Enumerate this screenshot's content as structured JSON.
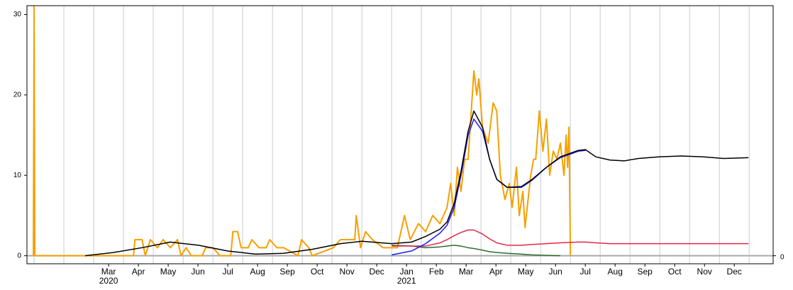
{
  "chart_data": {
    "type": "line",
    "xlim": [
      2019.98,
      2022.067
    ],
    "ylim": [
      -1,
      31.1
    ],
    "y2lim": [
      -1,
      31.1
    ],
    "yticks": [
      0,
      10,
      20,
      30
    ],
    "y2ticks": [
      0
    ],
    "xgrid": [
      2020,
      2020.0833,
      2020.1667,
      2020.25,
      2020.3333,
      2020.4167,
      2020.5,
      2020.5833,
      2020.6667,
      2020.75,
      2020.8333,
      2020.9167,
      2021,
      2021.0833,
      2021.1667,
      2021.25,
      2021.3333,
      2021.4167,
      2021.5,
      2021.5833,
      2021.6667,
      2021.75,
      2021.8333,
      2021.9167,
      2022
    ],
    "xticks": [
      {
        "value": 2020.2083,
        "label": "Mar 2020"
      },
      {
        "value": 2020.2917,
        "label": "Apr"
      },
      {
        "value": 2020.375,
        "label": "May"
      },
      {
        "value": 2020.4583,
        "label": "Jun"
      },
      {
        "value": 2020.5417,
        "label": "Jul"
      },
      {
        "value": 2020.625,
        "label": "Aug"
      },
      {
        "value": 2020.7083,
        "label": "Sep"
      },
      {
        "value": 2020.7917,
        "label": "Oct"
      },
      {
        "value": 2020.875,
        "label": "Nov"
      },
      {
        "value": 2020.9583,
        "label": "Dec"
      },
      {
        "value": 2021.0417,
        "label": "Jan 2021"
      },
      {
        "value": 2021.125,
        "label": "Feb"
      },
      {
        "value": 2021.2083,
        "label": "Mar"
      },
      {
        "value": 2021.2917,
        "label": "Apr"
      },
      {
        "value": 2021.375,
        "label": "May"
      },
      {
        "value": 2021.4583,
        "label": "Jun"
      },
      {
        "value": 2021.5417,
        "label": "Jul"
      },
      {
        "value": 2021.625,
        "label": "Aug"
      },
      {
        "value": 2021.7083,
        "label": "Sep"
      },
      {
        "value": 2021.7917,
        "label": "Oct"
      },
      {
        "value": 2021.875,
        "label": "Nov"
      },
      {
        "value": 2021.9583,
        "label": "Dec"
      }
    ],
    "x": [
      2020.143,
      2020.222,
      2020.302,
      2020.381,
      2020.46,
      2020.54,
      2020.619,
      2020.698,
      2020.778,
      2020.857,
      2020.917,
      2021.0,
      2021.056,
      2021.095,
      2021.135,
      2021.155,
      2021.175,
      2021.194,
      2021.214,
      2021.23,
      2021.254,
      2021.274,
      2021.294,
      2021.323,
      2021.363,
      2021.393,
      2021.433,
      2021.472,
      2021.522,
      2021.542,
      2021.571,
      2021.611,
      2021.651,
      2021.69,
      2021.75,
      2021.81,
      2021.869,
      2021.929,
      2021.998
    ],
    "series": [
      {
        "color": "#f5a000",
        "x": [
          2019.998,
          2020.0,
          2020.002,
          2020.278,
          2020.282,
          2020.302,
          2020.311,
          2020.325,
          2020.345,
          2020.361,
          2020.381,
          2020.401,
          2020.411,
          2020.425,
          2020.44,
          2020.47,
          2020.48,
          2020.5,
          2020.52,
          2020.55,
          2020.556,
          2020.569,
          2020.579,
          2020.599,
          2020.609,
          2020.629,
          2020.649,
          2020.659,
          2020.679,
          2020.698,
          2020.738,
          2020.748,
          2020.768,
          2020.778,
          2020.837,
          2020.857,
          2020.897,
          2020.901,
          2020.913,
          2020.927,
          2020.946,
          2020.976,
          2021.016,
          2021.036,
          2021.052,
          2021.075,
          2021.095,
          2021.115,
          2021.135,
          2021.155,
          2021.165,
          2021.175,
          2021.184,
          2021.194,
          2021.204,
          2021.214,
          2021.23,
          2021.238,
          2021.244,
          2021.254,
          2021.27,
          2021.284,
          2021.294,
          2021.304,
          2021.317,
          2021.329,
          2021.337,
          2021.349,
          2021.357,
          2021.367,
          2021.373,
          2021.389,
          2021.397,
          2021.403,
          2021.413,
          2021.423,
          2021.433,
          2021.442,
          2021.452,
          2021.462,
          2021.472,
          2021.482,
          2021.488,
          2021.492,
          2021.496,
          2021.5
        ],
        "values": [
          0,
          31,
          0,
          0,
          2,
          2,
          0,
          2,
          1,
          2,
          1,
          2,
          0,
          1,
          0,
          0,
          1,
          1,
          0,
          0,
          3,
          3,
          1,
          1,
          2,
          1,
          1,
          2,
          1,
          1,
          0,
          2,
          1,
          0,
          1,
          2,
          2,
          5,
          1,
          3,
          2,
          1,
          1,
          5,
          2,
          4,
          3,
          5,
          4,
          6,
          9,
          5,
          11,
          8,
          12,
          12,
          23,
          20,
          22,
          16,
          14,
          19,
          18,
          10,
          7,
          9,
          6,
          11,
          5,
          8,
          3.5,
          10,
          12,
          12,
          18,
          13,
          17,
          10,
          13,
          12,
          14,
          10,
          15,
          11,
          16,
          0
        ]
      },
      {
        "color": "#2e6b2e",
        "values": [
          null,
          null,
          null,
          null,
          null,
          null,
          null,
          null,
          null,
          null,
          null,
          1.3,
          1.2,
          1.0,
          1.1,
          1.2,
          1.3,
          1.2,
          1.0,
          0.9,
          0.7,
          0.5,
          0.4,
          0.3,
          0.2,
          0.1,
          0.05,
          0,
          null,
          null,
          null,
          null,
          null,
          null,
          null,
          null,
          null,
          null,
          null
        ]
      },
      {
        "color": "#e8264a",
        "values": [
          null,
          null,
          null,
          null,
          null,
          null,
          null,
          null,
          null,
          null,
          null,
          1.2,
          1.2,
          1.2,
          1.6,
          2.0,
          2.5,
          2.9,
          3.2,
          3.2,
          2.7,
          2.1,
          1.6,
          1.3,
          1.3,
          1.4,
          1.5,
          1.6,
          1.7,
          1.7,
          1.6,
          1.5,
          1.5,
          1.5,
          1.5,
          1.5,
          1.5,
          1.5,
          1.5
        ]
      },
      {
        "color": "#1a1aff",
        "values": [
          null,
          null,
          null,
          null,
          null,
          null,
          null,
          null,
          null,
          null,
          null,
          0.1,
          0.6,
          1.5,
          2.8,
          3.8,
          6,
          10,
          15,
          17,
          15.5,
          12,
          9.5,
          8.5,
          8.5,
          9.4,
          11,
          12.2,
          13,
          13.1,
          null,
          null,
          null,
          null,
          null,
          null,
          null,
          null,
          null
        ]
      },
      {
        "color": "#000000",
        "values": [
          0,
          0.4,
          1.0,
          1.7,
          1.3,
          0.6,
          0.2,
          0.3,
          0.8,
          1.5,
          1.8,
          1.5,
          1.7,
          2.4,
          3.3,
          4.2,
          6.5,
          10.5,
          15.5,
          18,
          16,
          12,
          9.5,
          8.5,
          8.6,
          9.5,
          11,
          12.3,
          13.1,
          13.2,
          12.3,
          11.9,
          11.8,
          12.1,
          12.3,
          12.4,
          12.3,
          12.1,
          12.2
        ]
      }
    ]
  }
}
